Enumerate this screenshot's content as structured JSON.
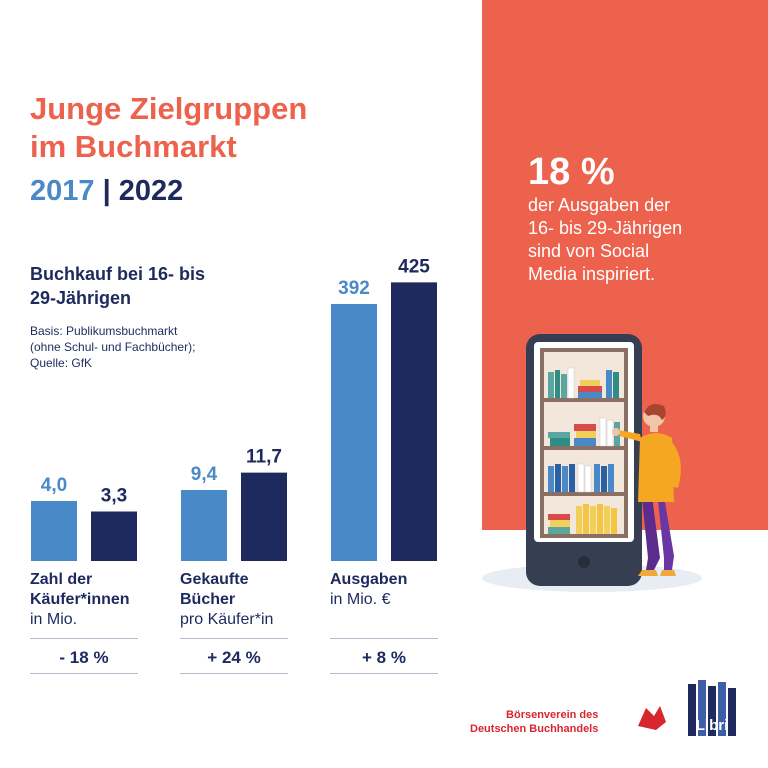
{
  "title_lines": [
    "Junge Zielgruppen",
    "im Buchmarkt"
  ],
  "years": {
    "first": "2017",
    "separator": " | ",
    "second": "2022"
  },
  "subtitle_lines": [
    "Buchkauf bei 16- bis",
    "29-Jährigen"
  ],
  "basis_lines": [
    "Basis: Publikumsbuchmarkt",
    "(ohne Schul- und Fachbücher);",
    "Quelle: GfK"
  ],
  "colors": {
    "accent": "#ec624d",
    "bar_2017": "#4a89c8",
    "bar_2022": "#1e2a5e",
    "title": "#ec624d"
  },
  "chart_data": {
    "type": "bar",
    "series": [
      {
        "name": "2017",
        "values": [
          4.0,
          9.4,
          392
        ]
      },
      {
        "name": "2022",
        "values": [
          3.3,
          11.7,
          425
        ]
      }
    ],
    "value_labels": [
      [
        "4,0",
        "3,3"
      ],
      [
        "9,4",
        "11,7"
      ],
      [
        "392",
        "425"
      ]
    ],
    "groups": [
      {
        "label_bold": [
          "Zahl der",
          "Käufer*innen"
        ],
        "label_normal": [
          "in Mio."
        ],
        "change": "- 18 %"
      },
      {
        "label_bold": [
          "Gekaufte",
          "Bücher"
        ],
        "label_normal": [
          "pro Käufer*in"
        ],
        "change": "+ 24 %"
      },
      {
        "label_bold": [
          "Ausgaben"
        ],
        "label_normal": [
          "in Mio. €"
        ],
        "change": "+ 8 %"
      }
    ]
  },
  "stat": {
    "value": "18 %",
    "text_lines": [
      "der Ausgaben der",
      "16- bis 29-Jährigen",
      "sind von Social",
      "Media inspiriert."
    ]
  },
  "logos": {
    "borsen_lines": [
      "Börsenverein des",
      "Deutschen Buchhandels"
    ],
    "libri": "Libri"
  }
}
